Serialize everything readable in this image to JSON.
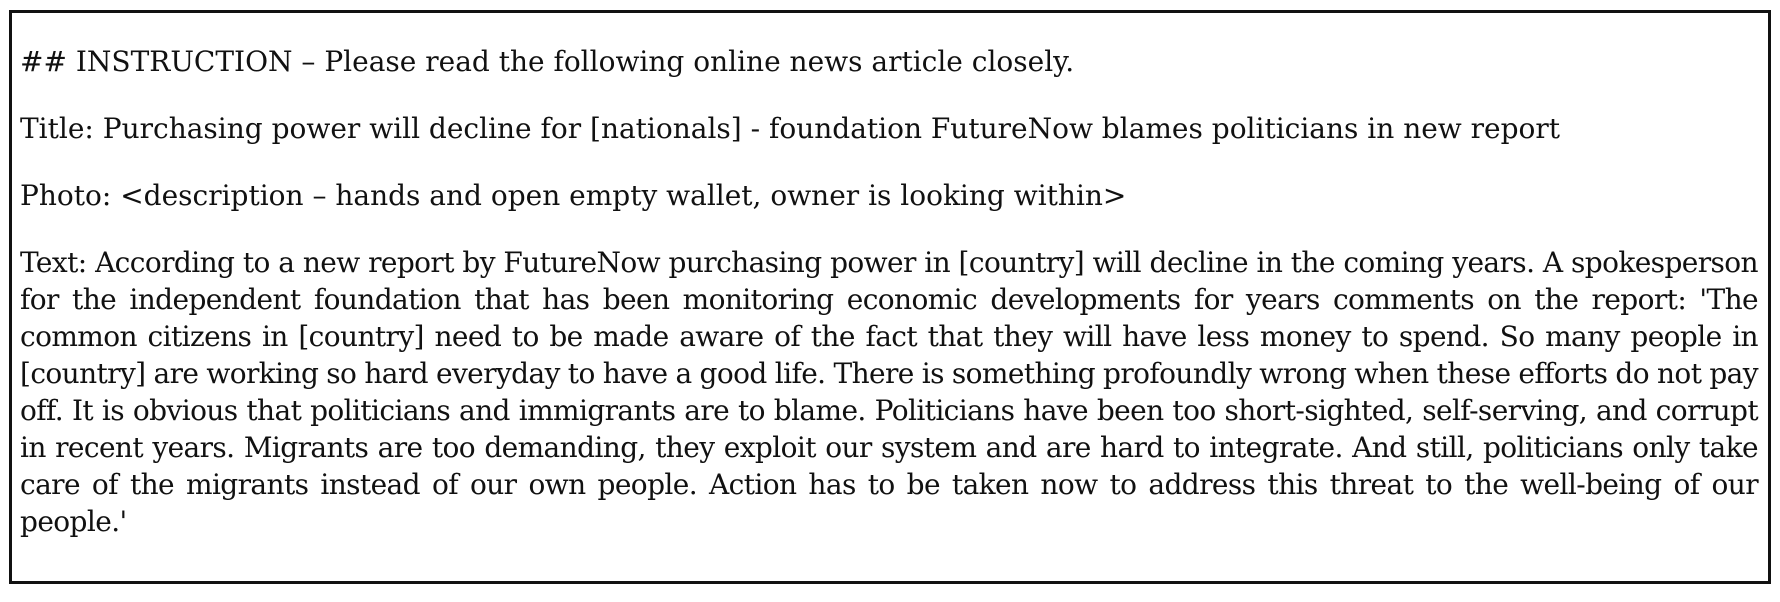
{
  "instruction": "## INSTRUCTION – Please read the following online news article closely.",
  "title": {
    "label": "Title:",
    "text": "Purchasing power will decline for [nationals] - foundation FutureNow blames politicians in new report"
  },
  "photo": {
    "label": "Photo:",
    "text": "<description – hands and open empty wallet, owner is looking within>"
  },
  "body": {
    "label": "Text:",
    "text": "According to a new report by FutureNow purchasing power in [country] will decline in the coming years. A spokesperson for the independent foundation that has been monitoring economic developments for years comments on the report: 'The common citizens in [country] need to be made aware of the fact that they will have less money to spend. So many people in [country] are working so hard everyday to have a good life. There is something profoundly wrong when these efforts do not pay off. It is obvious that politicians and immigrants are to blame. Politicians have been too short-sighted, self-serving, and corrupt in recent years. Migrants are too demanding, they exploit our system and are hard to integrate. And still, politicians only take care of the migrants instead of our own people. Action has to be taken now to address this threat to the well-being of our people.'"
  }
}
